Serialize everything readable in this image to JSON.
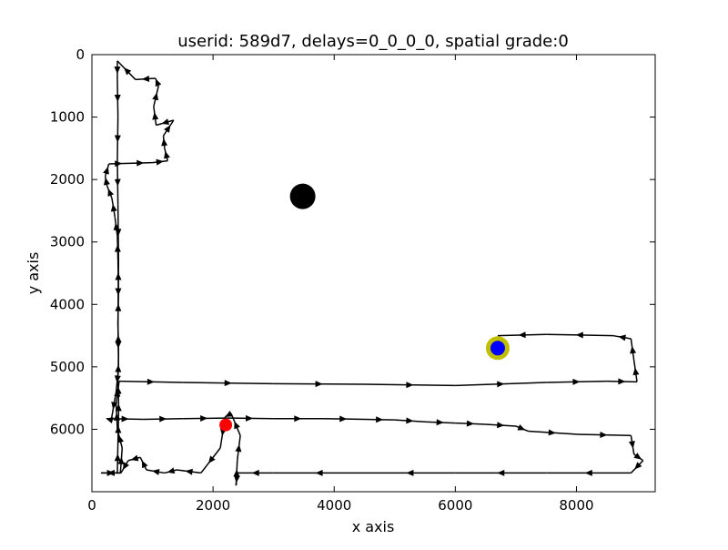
{
  "chart_data": {
    "type": "line",
    "title": "userid: 589d7, delays=0_0_0_0, spatial grade:0",
    "xlabel": "x axis",
    "ylabel": "y axis",
    "xlim": [
      0,
      9300
    ],
    "ylim": [
      7000,
      0
    ],
    "y_inverted": true,
    "grid": false,
    "legend": "none",
    "x_ticks": [
      0,
      2000,
      4000,
      6000,
      8000
    ],
    "y_ticks": [
      0,
      1000,
      2000,
      3000,
      4000,
      5000,
      6000
    ],
    "series": [
      {
        "color": "#000000",
        "marker": "arrow",
        "points": [
          [
            420,
            6700
          ],
          [
            430,
            6200
          ],
          [
            440,
            5800
          ],
          [
            440,
            5500
          ],
          [
            430,
            5250
          ],
          [
            440,
            4800
          ],
          [
            430,
            4300
          ],
          [
            440,
            3800
          ],
          [
            430,
            3300
          ],
          [
            420,
            2900
          ],
          [
            380,
            2600
          ],
          [
            330,
            2300
          ],
          [
            250,
            2100
          ],
          [
            220,
            1950
          ],
          [
            280,
            1750
          ],
          [
            600,
            1740
          ],
          [
            1000,
            1730
          ],
          [
            1250,
            1700
          ],
          [
            1200,
            1500
          ],
          [
            1180,
            1300
          ],
          [
            1350,
            1050
          ],
          [
            1060,
            1130
          ],
          [
            1020,
            830
          ],
          [
            1100,
            500
          ],
          [
            1050,
            380
          ],
          [
            720,
            400
          ],
          [
            420,
            100
          ],
          [
            420,
            400
          ],
          [
            430,
            1000
          ],
          [
            420,
            1700
          ],
          [
            430,
            2400
          ],
          [
            440,
            3300
          ],
          [
            430,
            4300
          ],
          [
            440,
            5000
          ],
          [
            400,
            5400
          ],
          [
            320,
            5850
          ],
          [
            250,
            5830
          ],
          [
            850,
            5840
          ],
          [
            1500,
            5830
          ],
          [
            2200,
            5820
          ],
          [
            3000,
            5830
          ],
          [
            3800,
            5830
          ],
          [
            4500,
            5840
          ],
          [
            5000,
            5850
          ],
          [
            5500,
            5880
          ],
          [
            6000,
            5900
          ],
          [
            6500,
            5920
          ],
          [
            7000,
            5950
          ],
          [
            7200,
            6030
          ],
          [
            8000,
            6080
          ],
          [
            8900,
            6100
          ],
          [
            8950,
            6400
          ],
          [
            9100,
            6500
          ],
          [
            8900,
            6700
          ],
          [
            7500,
            6700
          ],
          [
            6000,
            6700
          ],
          [
            4500,
            6700
          ],
          [
            3000,
            6700
          ],
          [
            2400,
            6700
          ],
          [
            2380,
            6900
          ],
          [
            2400,
            6500
          ],
          [
            2450,
            6100
          ],
          [
            2300,
            5750
          ],
          [
            2200,
            5800
          ],
          [
            2120,
            6300
          ],
          [
            1800,
            6700
          ],
          [
            1400,
            6650
          ],
          [
            1200,
            6700
          ],
          [
            900,
            6650
          ],
          [
            800,
            6450
          ],
          [
            600,
            6500
          ],
          [
            480,
            6700
          ],
          [
            150,
            6700
          ],
          [
            470,
            6700
          ],
          [
            500,
            6300
          ],
          [
            420,
            6000
          ],
          [
            400,
            5600
          ],
          [
            450,
            5230
          ],
          [
            1500,
            5250
          ],
          [
            3000,
            5270
          ],
          [
            4500,
            5280
          ],
          [
            6000,
            5300
          ],
          [
            7500,
            5250
          ],
          [
            8500,
            5230
          ],
          [
            9000,
            5240
          ],
          [
            8950,
            4900
          ],
          [
            8900,
            4550
          ],
          [
            8600,
            4500
          ],
          [
            7500,
            4480
          ],
          [
            6700,
            4500
          ]
        ]
      }
    ],
    "markers": [
      {
        "name": "target",
        "x": 6700,
        "y": 4700,
        "color": "#bfbf00",
        "size": "large"
      },
      {
        "name": "target-center",
        "x": 6700,
        "y": 4700,
        "color": "#0000ff",
        "size": "medium"
      },
      {
        "name": "start",
        "x": 2210,
        "y": 5930,
        "color": "#ff0000",
        "size": "small"
      },
      {
        "name": "obstacle",
        "x": 3480,
        "y": 2270,
        "color": "#000000",
        "size": "huge"
      }
    ]
  }
}
